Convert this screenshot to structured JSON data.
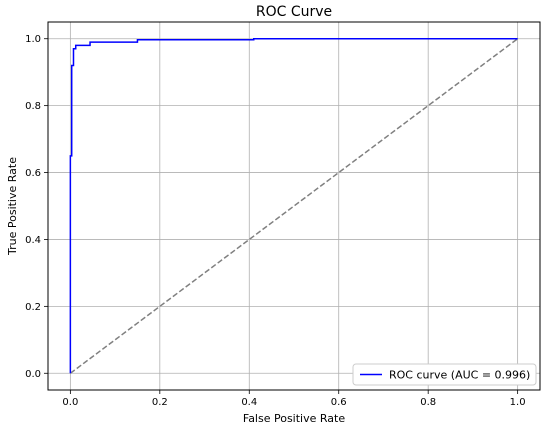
{
  "chart_data": {
    "type": "line",
    "title": "ROC Curve",
    "xlabel": "False Positive Rate",
    "ylabel": "True Positive Rate",
    "xlim": [
      -0.05,
      1.05
    ],
    "ylim": [
      -0.05,
      1.05
    ],
    "xticks": [
      "0.0",
      "0.2",
      "0.4",
      "0.6",
      "0.8",
      "1.0"
    ],
    "yticks": [
      "0.0",
      "0.2",
      "0.4",
      "0.6",
      "0.8",
      "1.0"
    ],
    "grid": true,
    "legend_position": "bottom-right",
    "series": [
      {
        "name": "ROC curve (AUC = 0.996)",
        "color": "#0000ff",
        "style": "solid",
        "x": [
          0.0,
          0.0,
          0.003,
          0.003,
          0.007,
          0.007,
          0.012,
          0.012,
          0.016,
          0.016,
          0.044,
          0.044,
          0.15,
          0.15,
          0.41,
          0.41,
          1.0
        ],
        "y": [
          0.0,
          0.65,
          0.65,
          0.92,
          0.92,
          0.97,
          0.97,
          0.98,
          0.98,
          0.98,
          0.98,
          0.99,
          0.99,
          0.997,
          0.997,
          1.0,
          1.0
        ]
      },
      {
        "name": "",
        "color": "#808080",
        "style": "dashed",
        "x": [
          0.0,
          1.0
        ],
        "y": [
          0.0,
          1.0
        ]
      }
    ]
  }
}
